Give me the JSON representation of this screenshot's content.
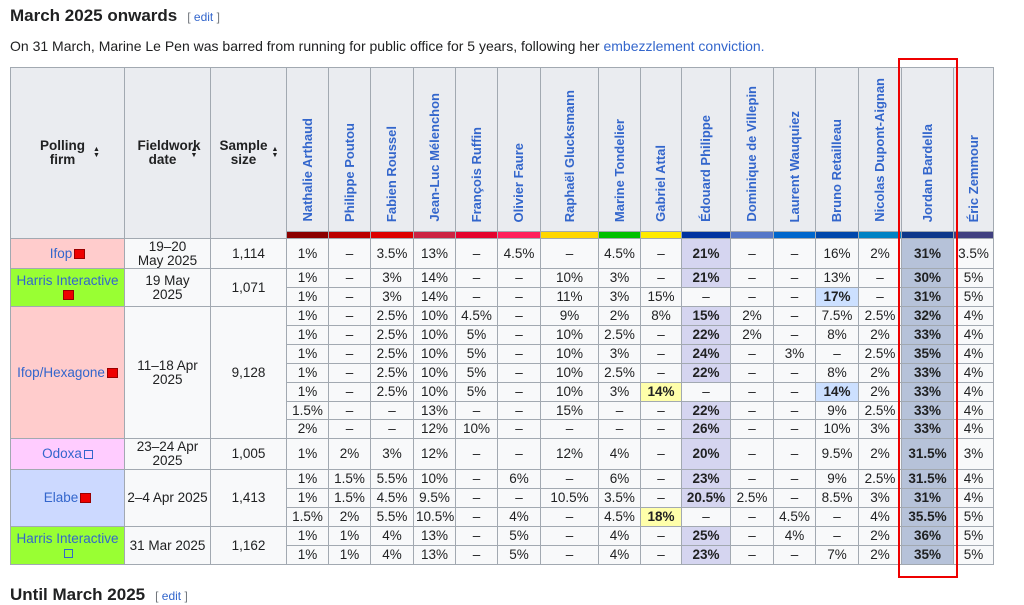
{
  "heading": {
    "title": "March 2025 onwards",
    "edit": "edit"
  },
  "intro": {
    "text": "On 31 March, Marine Le Pen was barred from running for public office for 5 years, following her ",
    "link": "embezzlement conviction."
  },
  "table": {
    "headers": [
      "Polling firm",
      "Fieldwork date",
      "Sample size"
    ],
    "candidates": [
      {
        "name": "Nathalie Arthaud",
        "color": "#8b0000"
      },
      {
        "name": "Philippe Poutou",
        "color": "#bb0000"
      },
      {
        "name": "Fabien Roussel",
        "color": "#dd0000"
      },
      {
        "name": "Jean-Luc Mélenchon",
        "color": "#cc2443"
      },
      {
        "name": "François Ruffin",
        "color": "#e4032e"
      },
      {
        "name": "Olivier Faure",
        "color": "#ff1f5b"
      },
      {
        "name": "Raphaël Glucksmann",
        "color": "#ffd700"
      },
      {
        "name": "Marine Tondelier",
        "color": "#00c000"
      },
      {
        "name": "Gabriel Attal",
        "color": "#ffeb00"
      },
      {
        "name": "Édouard Philippe",
        "color": "#0033a0"
      },
      {
        "name": "Dominique de Villepin",
        "color": "#5577c8"
      },
      {
        "name": "Laurent Wauquiez",
        "color": "#0066cc"
      },
      {
        "name": "Bruno Retailleau",
        "color": "#0047ab"
      },
      {
        "name": "Nicolas Dupont-Aignan",
        "color": "#0082c4"
      },
      {
        "name": "Jordan Bardella",
        "color": "#0d378a"
      },
      {
        "name": "Éric Zemmour",
        "color": "#404080"
      }
    ],
    "groups": [
      {
        "firm": "Ifop",
        "date": "19–20 May 2025",
        "sample": "1,114",
        "rows": [
          [
            "1%",
            "–",
            "3.5%",
            "13%",
            "–",
            "4.5%",
            "–",
            "4.5%",
            "–",
            "21%",
            "–",
            "–",
            "16%",
            "2%",
            "31%",
            "3.5%"
          ]
        ]
      },
      {
        "firm": "Harris Interactive",
        "date": "19 May 2025",
        "sample": "1,071",
        "rows": [
          [
            "1%",
            "–",
            "3%",
            "14%",
            "–",
            "–",
            "10%",
            "3%",
            "–",
            "21%",
            "–",
            "–",
            "13%",
            "–",
            "30%",
            "5%"
          ],
          [
            "1%",
            "–",
            "3%",
            "14%",
            "–",
            "–",
            "11%",
            "3%",
            "15%",
            "–",
            "–",
            "–",
            "17%",
            "–",
            "31%",
            "5%"
          ]
        ]
      },
      {
        "firm": "Ifop/Hexagone",
        "date": "11–18 Apr 2025",
        "sample": "9,128",
        "rows": [
          [
            "1%",
            "–",
            "2.5%",
            "10%",
            "4.5%",
            "–",
            "9%",
            "2%",
            "8%",
            "15%",
            "2%",
            "–",
            "7.5%",
            "2.5%",
            "32%",
            "4%"
          ],
          [
            "1%",
            "–",
            "2.5%",
            "10%",
            "5%",
            "–",
            "10%",
            "2.5%",
            "–",
            "22%",
            "2%",
            "–",
            "8%",
            "2%",
            "33%",
            "4%"
          ],
          [
            "1%",
            "–",
            "2.5%",
            "10%",
            "5%",
            "–",
            "10%",
            "3%",
            "–",
            "24%",
            "–",
            "3%",
            "–",
            "2.5%",
            "35%",
            "4%"
          ],
          [
            "1%",
            "–",
            "2.5%",
            "10%",
            "5%",
            "–",
            "10%",
            "2.5%",
            "–",
            "22%",
            "–",
            "–",
            "8%",
            "2%",
            "33%",
            "4%"
          ],
          [
            "1%",
            "–",
            "2.5%",
            "10%",
            "5%",
            "–",
            "10%",
            "3%",
            "14%",
            "–",
            "–",
            "–",
            "14%",
            "2%",
            "33%",
            "4%"
          ],
          [
            "1.5%",
            "–",
            "–",
            "13%",
            "–",
            "–",
            "15%",
            "–",
            "–",
            "22%",
            "–",
            "–",
            "9%",
            "2.5%",
            "33%",
            "4%"
          ],
          [
            "2%",
            "–",
            "–",
            "12%",
            "10%",
            "–",
            "–",
            "–",
            "–",
            "26%",
            "–",
            "–",
            "10%",
            "3%",
            "33%",
            "4%"
          ]
        ]
      },
      {
        "firm": "Odoxa",
        "date": "23–24 Apr 2025",
        "sample": "1,005",
        "rows": [
          [
            "1%",
            "2%",
            "3%",
            "12%",
            "–",
            "–",
            "12%",
            "4%",
            "–",
            "20%",
            "–",
            "–",
            "9.5%",
            "2%",
            "31.5%",
            "3%"
          ]
        ]
      },
      {
        "firm": "Elabe",
        "date": "2–4 Apr 2025",
        "sample": "1,413",
        "rows": [
          [
            "1%",
            "1.5%",
            "5.5%",
            "10%",
            "–",
            "6%",
            "–",
            "6%",
            "–",
            "23%",
            "–",
            "–",
            "9%",
            "2.5%",
            "31.5%",
            "4%"
          ],
          [
            "1%",
            "1.5%",
            "4.5%",
            "9.5%",
            "–",
            "–",
            "10.5%",
            "3.5%",
            "–",
            "20.5%",
            "2.5%",
            "–",
            "8.5%",
            "3%",
            "31%",
            "4%"
          ],
          [
            "1.5%",
            "2%",
            "5.5%",
            "10.5%",
            "–",
            "4%",
            "–",
            "4.5%",
            "18%",
            "–",
            "–",
            "4.5%",
            "–",
            "4%",
            "35.5%",
            "5%"
          ]
        ]
      },
      {
        "firm": "Harris Interactive",
        "date": "31 Mar 2025",
        "sample": "1,162",
        "rows": [
          [
            "1%",
            "1%",
            "4%",
            "13%",
            "–",
            "5%",
            "–",
            "4%",
            "–",
            "25%",
            "–",
            "4%",
            "–",
            "2%",
            "36%",
            "5%"
          ],
          [
            "1%",
            "1%",
            "4%",
            "13%",
            "–",
            "5%",
            "–",
            "4%",
            "–",
            "23%",
            "–",
            "–",
            "7%",
            "2%",
            "35%",
            "5%"
          ]
        ]
      }
    ]
  },
  "next_heading": {
    "title": "Until March 2025",
    "edit": "edit"
  }
}
